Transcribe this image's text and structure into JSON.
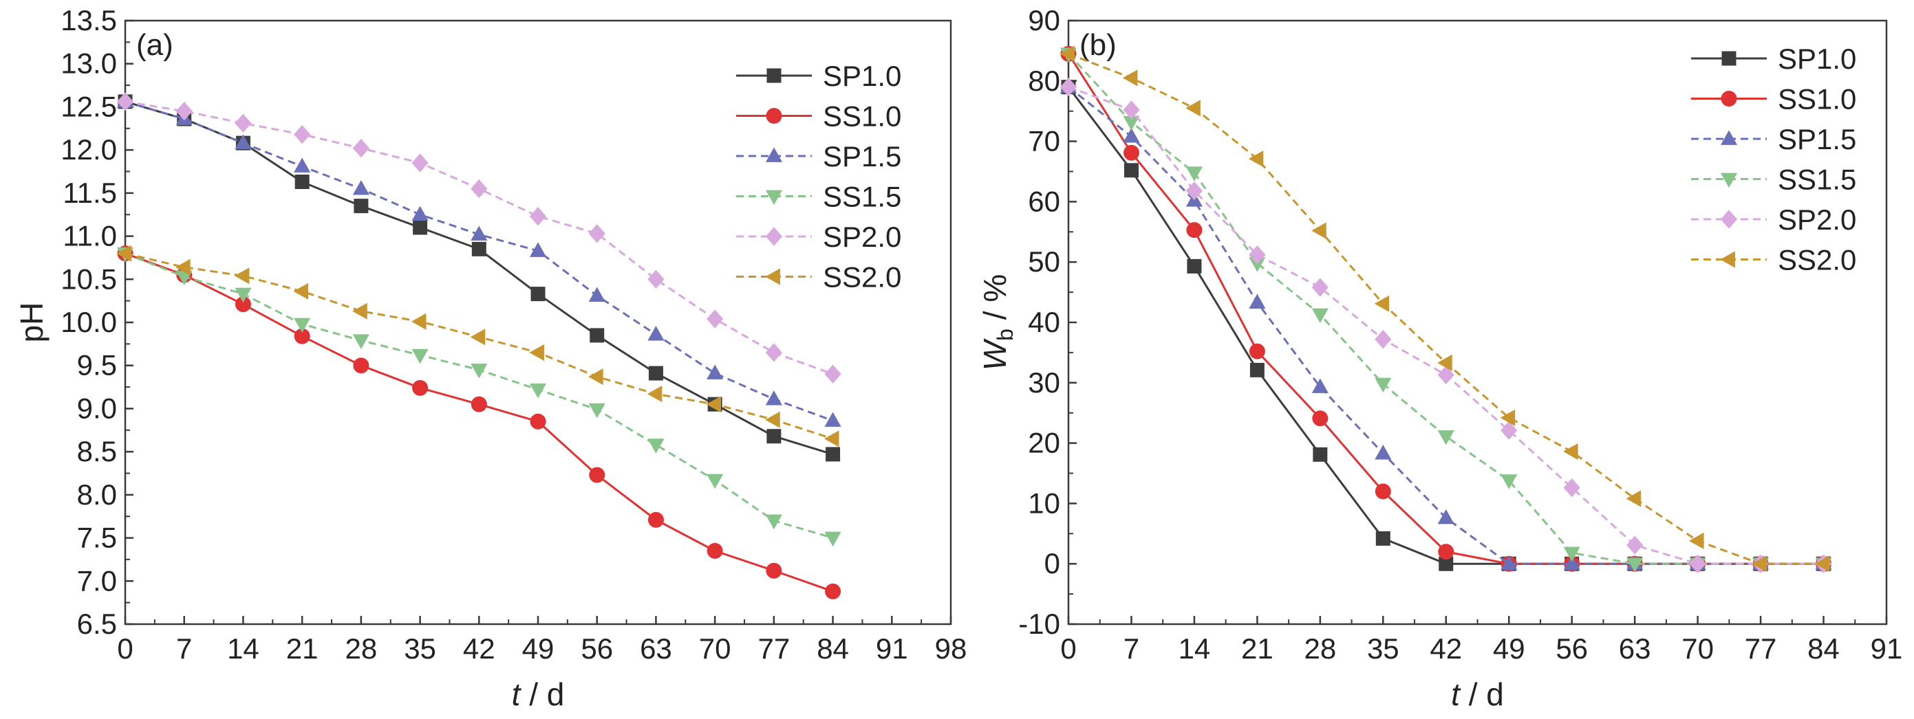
{
  "chart_data": [
    {
      "type": "line",
      "panel_label": "(a)",
      "xlabel_italic": "t",
      "xlabel_unit": " / d",
      "ylabel": "pH",
      "xlim": [
        0,
        98
      ],
      "ylim": [
        6.5,
        13.5
      ],
      "xticks": [
        0,
        7,
        14,
        21,
        28,
        35,
        42,
        49,
        56,
        63,
        70,
        77,
        84,
        91,
        98
      ],
      "yticks": [
        6.5,
        7.0,
        7.5,
        8.0,
        8.5,
        9.0,
        9.5,
        10.0,
        10.5,
        11.0,
        11.5,
        12.0,
        12.5,
        13.0,
        13.5
      ],
      "ytick_decimals": 1,
      "grid": false,
      "legend_position": "top-right",
      "x": [
        0,
        7,
        14,
        21,
        28,
        35,
        42,
        49,
        56,
        63,
        70,
        77,
        84
      ],
      "series": [
        {
          "name": "SP1.0",
          "color": "#3d3d3d",
          "marker": "square",
          "dash": "solid",
          "values": [
            12.56,
            12.36,
            12.08,
            11.63,
            11.35,
            11.1,
            10.85,
            10.33,
            9.85,
            9.41,
            9.05,
            8.68,
            8.47
          ]
        },
        {
          "name": "SS1.0",
          "color": "#e03232",
          "marker": "circle",
          "dash": "solid",
          "values": [
            10.8,
            10.55,
            10.21,
            9.84,
            9.5,
            9.24,
            9.05,
            8.85,
            8.23,
            7.71,
            7.35,
            7.12,
            6.88
          ]
        },
        {
          "name": "SP1.5",
          "color": "#6a70b8",
          "marker": "triangle-up",
          "dash": "dashed",
          "values": [
            12.56,
            12.36,
            12.08,
            11.81,
            11.55,
            11.25,
            11.02,
            10.83,
            10.31,
            9.86,
            9.41,
            9.11,
            8.86
          ]
        },
        {
          "name": "SS1.5",
          "color": "#86c48a",
          "marker": "triangle-down",
          "dash": "dashed",
          "values": [
            10.8,
            10.53,
            10.33,
            9.98,
            9.79,
            9.62,
            9.45,
            9.22,
            8.99,
            8.58,
            8.17,
            7.7,
            7.5
          ]
        },
        {
          "name": "SP2.0",
          "color": "#d9a8de",
          "marker": "diamond",
          "dash": "dashed",
          "values": [
            12.56,
            12.45,
            12.31,
            12.18,
            12.02,
            11.85,
            11.55,
            11.23,
            11.03,
            10.5,
            10.04,
            9.65,
            9.4
          ]
        },
        {
          "name": "SS2.0",
          "color": "#c8962e",
          "marker": "triangle-left",
          "dash": "dashed",
          "values": [
            10.8,
            10.64,
            10.54,
            10.36,
            10.13,
            10.01,
            9.83,
            9.65,
            9.37,
            9.17,
            9.05,
            8.87,
            8.65
          ]
        }
      ]
    },
    {
      "type": "line",
      "panel_label": "(b)",
      "xlabel_italic": "t",
      "xlabel_unit": " / d",
      "ylabel_italic": "W",
      "ylabel_sub": "b",
      "ylabel_unit": " / %",
      "xlim": [
        0,
        91
      ],
      "ylim": [
        -10,
        90
      ],
      "xticks": [
        0,
        7,
        14,
        21,
        28,
        35,
        42,
        49,
        56,
        63,
        70,
        77,
        84,
        91
      ],
      "yticks": [
        -10,
        0,
        10,
        20,
        30,
        40,
        50,
        60,
        70,
        80,
        90
      ],
      "ytick_decimals": 0,
      "grid": false,
      "legend_position": "top-right",
      "x": [
        0,
        7,
        14,
        21,
        28,
        35,
        42,
        49,
        56,
        63,
        70,
        77,
        84
      ],
      "series": [
        {
          "name": "SP1.0",
          "color": "#3d3d3d",
          "marker": "square",
          "dash": "solid",
          "values": [
            79,
            65.2,
            49.3,
            32.1,
            18.1,
            4.2,
            0,
            0,
            0,
            0,
            0,
            0,
            0
          ]
        },
        {
          "name": "SS1.0",
          "color": "#e03232",
          "marker": "circle",
          "dash": "solid",
          "values": [
            84.5,
            68.1,
            55.3,
            35.2,
            24.1,
            12.0,
            2.0,
            0,
            0,
            0,
            0,
            0,
            0
          ]
        },
        {
          "name": "SP1.5",
          "color": "#6a70b8",
          "marker": "triangle-up",
          "dash": "dashed",
          "values": [
            79,
            70.8,
            60.2,
            43.3,
            29.3,
            18.3,
            7.6,
            0,
            0,
            0,
            0,
            0,
            0
          ]
        },
        {
          "name": "SS1.5",
          "color": "#86c48a",
          "marker": "triangle-down",
          "dash": "dashed",
          "values": [
            84.5,
            73.2,
            64.8,
            49.8,
            41.3,
            29.8,
            21.1,
            13.8,
            1.8,
            0,
            0,
            0,
            0
          ]
        },
        {
          "name": "SP2.0",
          "color": "#d9a8de",
          "marker": "diamond",
          "dash": "dashed",
          "values": [
            79,
            75.2,
            61.8,
            51.2,
            45.8,
            37.2,
            31.3,
            22.1,
            12.6,
            3.1,
            0,
            0,
            0
          ]
        },
        {
          "name": "SS2.0",
          "color": "#c8962e",
          "marker": "triangle-left",
          "dash": "dashed",
          "values": [
            84.5,
            80.5,
            75.5,
            67.1,
            55.2,
            43.1,
            33.3,
            24.2,
            18.6,
            10.8,
            3.8,
            0,
            0
          ]
        }
      ]
    }
  ]
}
